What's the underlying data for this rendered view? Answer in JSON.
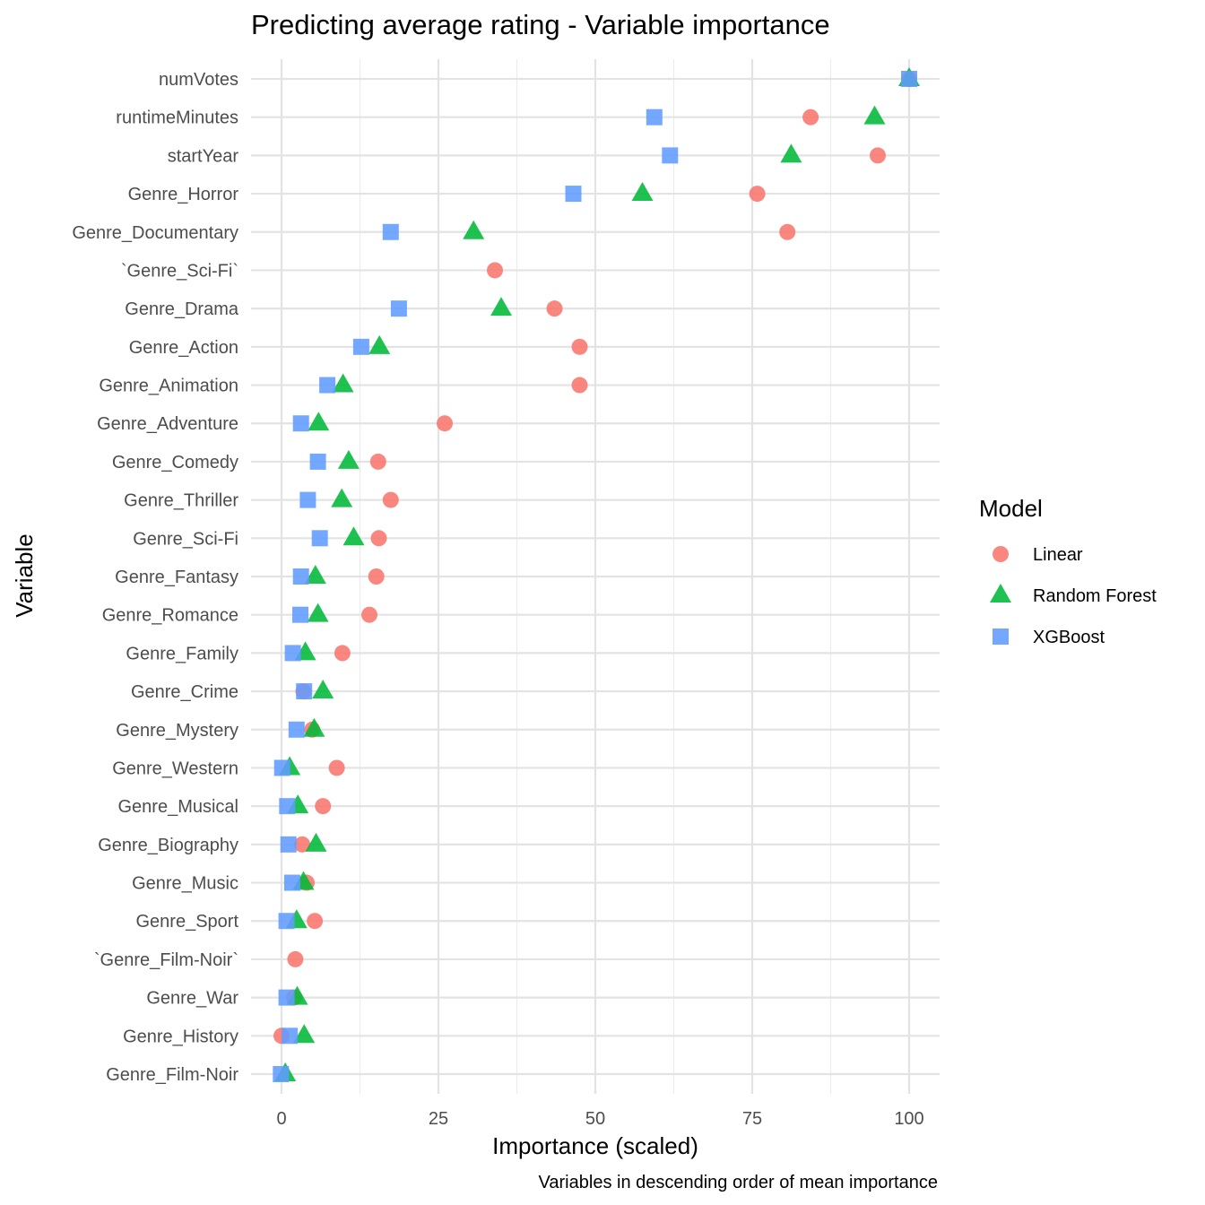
{
  "chart_data": {
    "type": "scatter",
    "title": "Predicting average rating - Variable importance",
    "xlabel": "Importance (scaled)",
    "ylabel": "Variable",
    "caption": "Variables in descending order of mean importance",
    "xlim": [
      -5,
      105
    ],
    "xticks": [
      0,
      25,
      50,
      75,
      100
    ],
    "grid": true,
    "legend": {
      "title": "Model",
      "position": "right"
    },
    "categories": [
      "numVotes",
      "runtimeMinutes",
      "startYear",
      "Genre_Horror",
      "Genre_Documentary",
      "`Genre_Sci-Fi`",
      "Genre_Drama",
      "Genre_Action",
      "Genre_Animation",
      "Genre_Adventure",
      "Genre_Comedy",
      "Genre_Thriller",
      "Genre_Sci-Fi",
      "Genre_Fantasy",
      "Genre_Romance",
      "Genre_Family",
      "Genre_Crime",
      "Genre_Mystery",
      "Genre_Western",
      "Genre_Musical",
      "Genre_Biography",
      "Genre_Music",
      "Genre_Sport",
      "`Genre_Film-Noir`",
      "Genre_War",
      "Genre_History",
      "Genre_Film-Noir"
    ],
    "series": [
      {
        "name": "Linear",
        "color": "#F8766D",
        "shape": "circle",
        "values": [
          100,
          84.3,
          95.0,
          75.8,
          80.6,
          34.0,
          43.5,
          47.5,
          47.5,
          26.0,
          15.4,
          17.4,
          15.5,
          15.1,
          14.0,
          9.7,
          3.5,
          4.9,
          8.8,
          6.6,
          3.3,
          4.0,
          5.3,
          2.2,
          2.0,
          0.0,
          null
        ]
      },
      {
        "name": "Random Forest",
        "color": "#00BA38",
        "shape": "triangle",
        "values": [
          100,
          94.5,
          81.2,
          57.5,
          30.6,
          null,
          35.0,
          15.6,
          9.8,
          5.9,
          10.7,
          9.6,
          11.5,
          5.4,
          5.8,
          3.8,
          6.6,
          5.2,
          1.3,
          2.6,
          5.5,
          3.5,
          2.4,
          null,
          2.5,
          3.6,
          0.6
        ]
      },
      {
        "name": "XGBoost",
        "color": "#619CFF",
        "shape": "square",
        "values": [
          100,
          59.4,
          61.9,
          46.5,
          17.4,
          null,
          18.7,
          12.7,
          7.3,
          3.1,
          5.8,
          4.2,
          6.1,
          3.1,
          3.0,
          1.8,
          3.6,
          2.4,
          0.1,
          0.9,
          1.1,
          1.7,
          0.8,
          null,
          0.8,
          1.3,
          -0.1
        ]
      }
    ]
  }
}
